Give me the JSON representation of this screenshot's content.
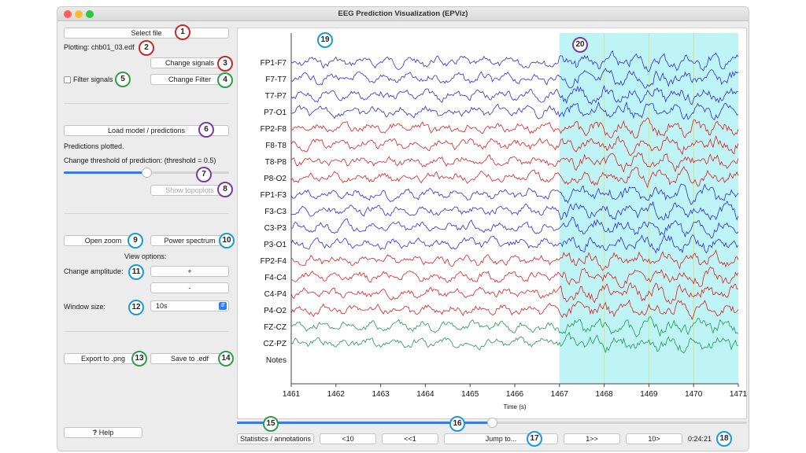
{
  "window": {
    "title": "EEG Prediction Visualization (EPViz)"
  },
  "sidebar": {
    "select_file": "Select file",
    "plotting_label": "Plotting: chb01_03.edf",
    "change_signals": "Change signals",
    "filter_signals": "Filter signals",
    "change_filter": "Change Filter",
    "load_model": "Load model / predictions",
    "predictions_plotted": "Predictions plotted.",
    "threshold_label": "Change threshold of prediction:  (threshold = 0.5)",
    "threshold_value": 0.5,
    "show_topoplots": "Show topoplots",
    "open_zoom": "Open zoom",
    "power_spectrum": "Power spectrum",
    "view_options": "View options:",
    "change_amplitude": "Change amplitude:",
    "amp_plus": "+",
    "amp_minus": "-",
    "window_size_label": "Window size:",
    "window_size_value": "10s",
    "export_png": "Export to .png",
    "save_edf": "Save to .edf",
    "help": "Help",
    "help_icon": "?"
  },
  "bottom": {
    "statistics": "Statistics / annotations",
    "back10": "<10",
    "back1": "<<1",
    "jump": "Jump to...",
    "fwd1": "1>>",
    "fwd10": "10>",
    "time": "0:24:21",
    "slider_value": 0.5
  },
  "annotations": [
    "1",
    "2",
    "3",
    "4",
    "5",
    "6",
    "7",
    "8",
    "9",
    "10",
    "11",
    "12",
    "13",
    "14",
    "15",
    "16",
    "17",
    "18",
    "19",
    "20"
  ],
  "colors": {
    "blue": "#2b2bdc",
    "red": "#dc1e1e",
    "green": "#1d9a4a",
    "highlight": "#bff4f7",
    "accent": "#2c7cf2"
  },
  "chart_data": {
    "type": "line",
    "title": "",
    "xlabel": "Time (s)",
    "ylabel": "",
    "xlim": [
      1461,
      1471
    ],
    "x_ticks": [
      "1461",
      "1462",
      "1463",
      "1464",
      "1465",
      "1466",
      "1467",
      "1468",
      "1469",
      "1470",
      "1471"
    ],
    "channels": [
      {
        "name": "FP1-F7",
        "color": "blue"
      },
      {
        "name": "F7-T7",
        "color": "blue"
      },
      {
        "name": "T7-P7",
        "color": "blue"
      },
      {
        "name": "P7-O1",
        "color": "blue"
      },
      {
        "name": "FP2-F8",
        "color": "red"
      },
      {
        "name": "F8-T8",
        "color": "red"
      },
      {
        "name": "T8-P8",
        "color": "red"
      },
      {
        "name": "P8-O2",
        "color": "red"
      },
      {
        "name": "FP1-F3",
        "color": "blue"
      },
      {
        "name": "F3-C3",
        "color": "blue"
      },
      {
        "name": "C3-P3",
        "color": "blue"
      },
      {
        "name": "P3-O1",
        "color": "blue"
      },
      {
        "name": "FP2-F4",
        "color": "red"
      },
      {
        "name": "F4-C4",
        "color": "red"
      },
      {
        "name": "C4-P4",
        "color": "red"
      },
      {
        "name": "P4-O2",
        "color": "red"
      },
      {
        "name": "FZ-CZ",
        "color": "green"
      },
      {
        "name": "CZ-PZ",
        "color": "green"
      }
    ],
    "notes_label": "Notes",
    "prediction_region": [
      1467,
      1471
    ],
    "prediction_lines": [
      1468,
      1469,
      1470
    ]
  }
}
